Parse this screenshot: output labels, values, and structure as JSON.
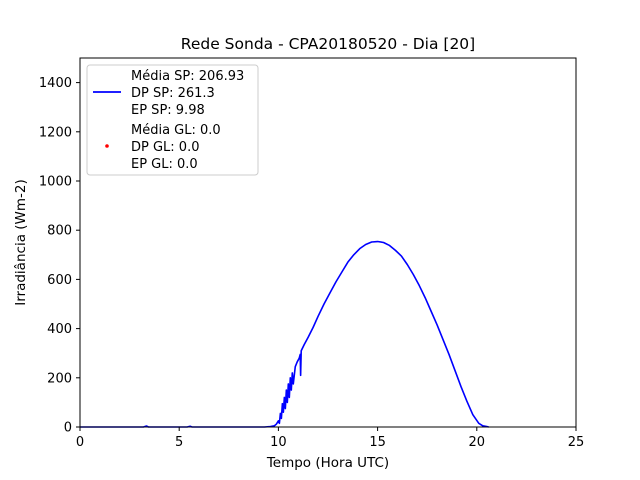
{
  "chart_data": {
    "type": "line",
    "title": "Rede Sonda - CPA20180520 - Dia [20]",
    "xlabel": "Tempo (Hora UTC)",
    "ylabel": "Irradiância (Wm-2)",
    "xlim": [
      0,
      25
    ],
    "ylim": [
      0,
      1500
    ],
    "xticks": [
      0,
      5,
      10,
      15,
      20,
      25
    ],
    "xtick_labels": [
      "0",
      "5",
      "10",
      "15",
      "20",
      "25"
    ],
    "yticks": [
      0,
      200,
      400,
      600,
      800,
      1000,
      1200,
      1400
    ],
    "ytick_labels": [
      "0",
      "200",
      "400",
      "600",
      "800",
      "1000",
      "1200",
      "1400"
    ],
    "grid": false,
    "legend_position": "top-left",
    "series": [
      {
        "name": "SP",
        "kind": "line",
        "color": "#0000ff",
        "legend_lines": [
          "Média SP: 206.93",
          "DP SP: 261.3",
          "EP SP: 9.98"
        ],
        "points": [
          [
            0.0,
            0
          ],
          [
            3.2,
            0
          ],
          [
            3.35,
            4
          ],
          [
            3.45,
            0
          ],
          [
            5.4,
            0
          ],
          [
            5.55,
            3
          ],
          [
            5.65,
            0
          ],
          [
            9.3,
            0
          ],
          [
            9.6,
            2
          ],
          [
            9.8,
            5
          ],
          [
            9.9,
            12
          ],
          [
            10.0,
            25
          ],
          [
            10.05,
            15
          ],
          [
            10.1,
            55
          ],
          [
            10.15,
            35
          ],
          [
            10.2,
            95
          ],
          [
            10.25,
            60
          ],
          [
            10.3,
            120
          ],
          [
            10.35,
            75
          ],
          [
            10.4,
            150
          ],
          [
            10.45,
            100
          ],
          [
            10.5,
            175
          ],
          [
            10.55,
            120
          ],
          [
            10.6,
            200
          ],
          [
            10.65,
            150
          ],
          [
            10.7,
            220
          ],
          [
            10.75,
            175
          ],
          [
            10.85,
            245
          ],
          [
            10.95,
            265
          ],
          [
            11.05,
            280
          ],
          [
            11.1,
            295
          ],
          [
            11.12,
            210
          ],
          [
            11.15,
            310
          ],
          [
            11.3,
            335
          ],
          [
            11.5,
            365
          ],
          [
            11.75,
            405
          ],
          [
            12.0,
            450
          ],
          [
            12.3,
            500
          ],
          [
            12.6,
            545
          ],
          [
            12.9,
            590
          ],
          [
            13.2,
            630
          ],
          [
            13.5,
            670
          ],
          [
            13.8,
            700
          ],
          [
            14.1,
            725
          ],
          [
            14.4,
            742
          ],
          [
            14.7,
            752
          ],
          [
            15.0,
            754
          ],
          [
            15.3,
            750
          ],
          [
            15.6,
            738
          ],
          [
            15.9,
            718
          ],
          [
            16.2,
            695
          ],
          [
            16.5,
            660
          ],
          [
            16.8,
            620
          ],
          [
            17.1,
            575
          ],
          [
            17.4,
            525
          ],
          [
            17.7,
            470
          ],
          [
            18.0,
            415
          ],
          [
            18.3,
            355
          ],
          [
            18.6,
            295
          ],
          [
            18.9,
            230
          ],
          [
            19.2,
            165
          ],
          [
            19.5,
            105
          ],
          [
            19.8,
            50
          ],
          [
            20.1,
            15
          ],
          [
            20.3,
            5
          ],
          [
            20.5,
            2
          ],
          [
            20.6,
            0
          ]
        ]
      },
      {
        "name": "GL",
        "kind": "scatter",
        "color": "#ff0000",
        "legend_lines": [
          "Média GL: 0.0",
          "DP GL: 0.0",
          "EP GL: 0.0"
        ],
        "points": []
      }
    ]
  }
}
